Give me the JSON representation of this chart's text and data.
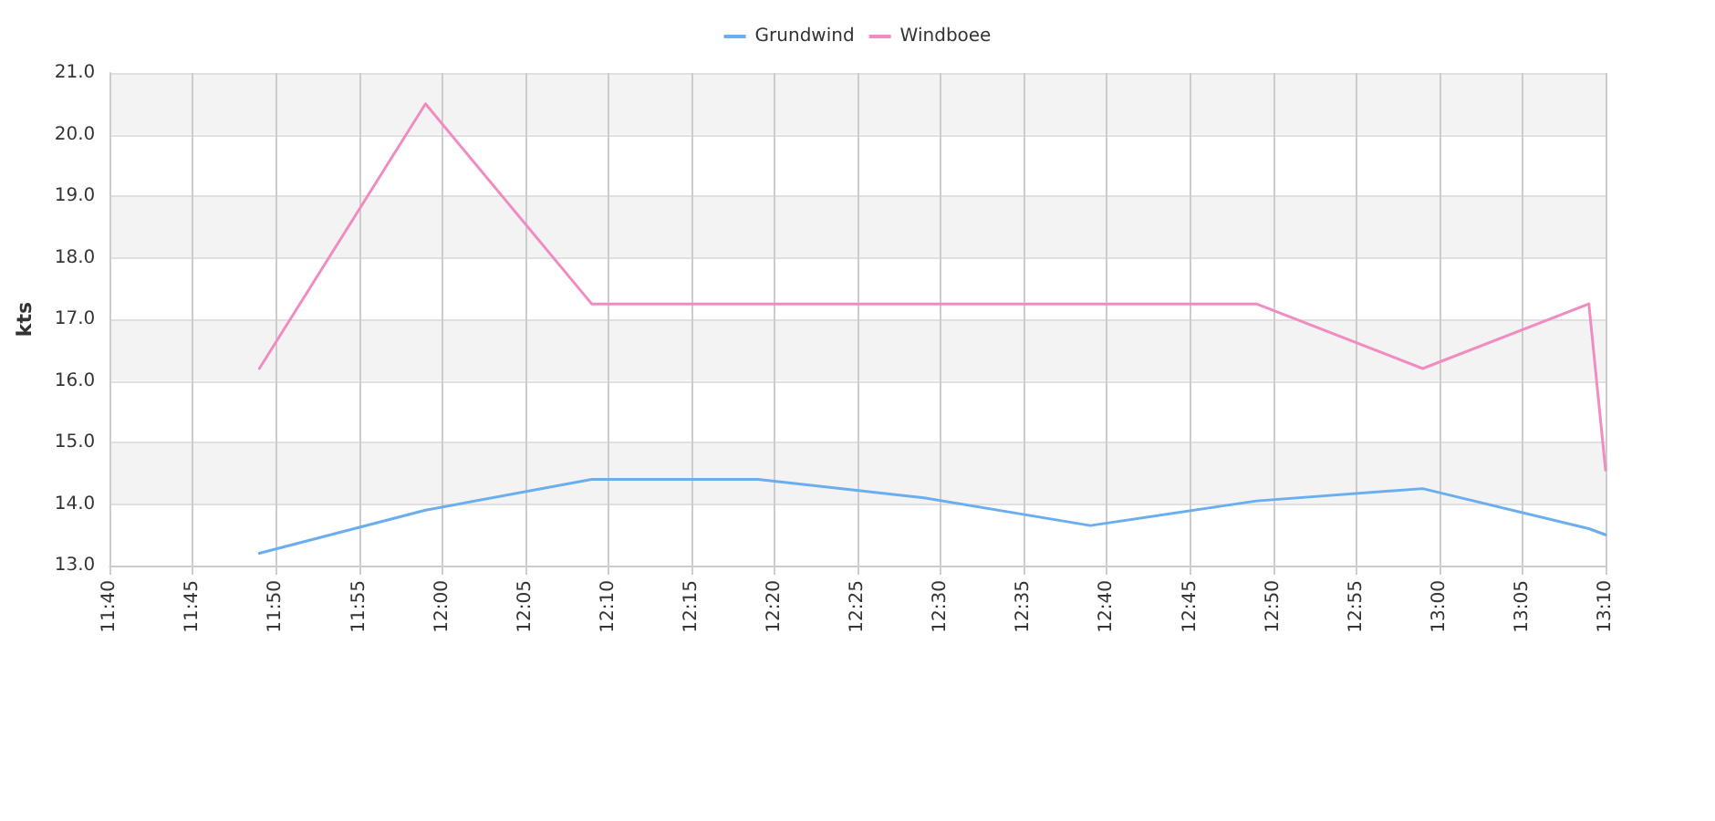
{
  "chart_data": {
    "type": "line",
    "ylabel": "kts",
    "legend": "top",
    "grid": true,
    "marker": "none",
    "line_style": "solid",
    "x": [
      11.8167,
      11.9833,
      12.15,
      12.3167,
      12.4833,
      12.65,
      12.8167,
      12.9833,
      13.15,
      13.1667
    ],
    "series": [
      {
        "name": "Grundwind",
        "color": "#6aaef0",
        "values": [
          13.2,
          13.9,
          14.4,
          14.4,
          14.1,
          13.65,
          14.05,
          14.25,
          13.6,
          13.5
        ]
      },
      {
        "name": "Windboee",
        "color": "#f08cc0",
        "values": [
          16.2,
          20.5,
          17.25,
          17.25,
          17.25,
          17.25,
          17.25,
          16.2,
          17.25,
          14.55
        ]
      }
    ],
    "xlim": [
      11.6667,
      13.1667
    ],
    "xticks": [
      {
        "value": 11.6667,
        "label": "11:40"
      },
      {
        "value": 11.75,
        "label": "11:45"
      },
      {
        "value": 11.8333,
        "label": "11:50"
      },
      {
        "value": 11.9167,
        "label": "11:55"
      },
      {
        "value": 12,
        "label": "12:00"
      },
      {
        "value": 12.0833,
        "label": "12:05"
      },
      {
        "value": 12.1667,
        "label": "12:10"
      },
      {
        "value": 12.25,
        "label": "12:15"
      },
      {
        "value": 12.3333,
        "label": "12:20"
      },
      {
        "value": 12.4167,
        "label": "12:25"
      },
      {
        "value": 12.5,
        "label": "12:30"
      },
      {
        "value": 12.5833,
        "label": "12:35"
      },
      {
        "value": 12.6667,
        "label": "12:40"
      },
      {
        "value": 12.75,
        "label": "12:45"
      },
      {
        "value": 12.8333,
        "label": "12:50"
      },
      {
        "value": 12.9167,
        "label": "12:55"
      },
      {
        "value": 13,
        "label": "13:00"
      },
      {
        "value": 13.0833,
        "label": "13:05"
      },
      {
        "value": 13.1667,
        "label": "13:10"
      }
    ],
    "ylim": [
      13,
      21
    ],
    "yticks": [
      {
        "value": 13,
        "label": "13.0"
      },
      {
        "value": 14,
        "label": "14.0"
      },
      {
        "value": 15,
        "label": "15.0"
      },
      {
        "value": 16,
        "label": "16.0"
      },
      {
        "value": 17,
        "label": "17.0"
      },
      {
        "value": 18,
        "label": "18.0"
      },
      {
        "value": 19,
        "label": "19.0"
      },
      {
        "value": 20,
        "label": "20.0"
      },
      {
        "value": 21,
        "label": "21.0"
      }
    ]
  }
}
